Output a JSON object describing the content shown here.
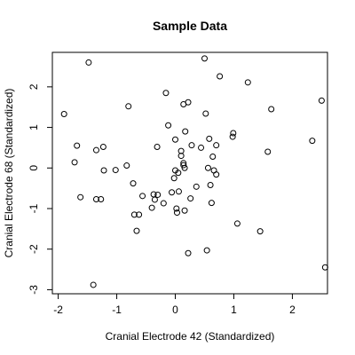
{
  "chart_data": {
    "type": "scatter",
    "title": "Sample Data",
    "xlabel": "Cranial Electrode 42 (Standardized)",
    "ylabel": "Cranial Electrode 68 (Standardized)",
    "xlim": [
      -2.1,
      2.6
    ],
    "ylim": [
      -3.1,
      2.85
    ],
    "xticks": [
      -2,
      -1,
      0,
      1,
      2
    ],
    "yticks": [
      -3,
      -2,
      -1,
      0,
      1,
      2
    ],
    "grid": false,
    "marker": "open-circle",
    "points": [
      {
        "x": -1.9,
        "y": 1.33
      },
      {
        "x": -1.48,
        "y": 2.6
      },
      {
        "x": -1.68,
        "y": 0.55
      },
      {
        "x": -1.72,
        "y": 0.14
      },
      {
        "x": -1.62,
        "y": -0.72
      },
      {
        "x": -1.35,
        "y": 0.44
      },
      {
        "x": -1.23,
        "y": 0.52
      },
      {
        "x": -1.22,
        "y": -0.06
      },
      {
        "x": -1.35,
        "y": -0.77
      },
      {
        "x": -1.27,
        "y": -0.77
      },
      {
        "x": -1.02,
        "y": -0.05
      },
      {
        "x": -0.83,
        "y": 0.06
      },
      {
        "x": -0.8,
        "y": 1.52
      },
      {
        "x": -0.72,
        "y": -0.38
      },
      {
        "x": -0.7,
        "y": -1.15
      },
      {
        "x": -0.62,
        "y": -1.15
      },
      {
        "x": -0.66,
        "y": -1.55
      },
      {
        "x": -0.56,
        "y": -0.69
      },
      {
        "x": -0.4,
        "y": -0.98
      },
      {
        "x": -0.37,
        "y": -0.65
      },
      {
        "x": -0.35,
        "y": -0.78
      },
      {
        "x": -0.3,
        "y": -0.66
      },
      {
        "x": -0.31,
        "y": 0.52
      },
      {
        "x": -0.2,
        "y": -0.87
      },
      {
        "x": -0.16,
        "y": 1.85
      },
      {
        "x": -0.12,
        "y": 1.05
      },
      {
        "x": -0.06,
        "y": -0.6
      },
      {
        "x": -0.02,
        "y": -0.25
      },
      {
        "x": 0.0,
        "y": 0.7
      },
      {
        "x": 0.0,
        "y": -0.06
      },
      {
        "x": 0.02,
        "y": -1.0
      },
      {
        "x": 0.03,
        "y": -1.1
      },
      {
        "x": 0.05,
        "y": -0.12
      },
      {
        "x": 0.1,
        "y": 0.42
      },
      {
        "x": 0.06,
        "y": -0.58
      },
      {
        "x": 0.1,
        "y": 0.3
      },
      {
        "x": 0.14,
        "y": 0.12
      },
      {
        "x": 0.14,
        "y": 0.07
      },
      {
        "x": 0.14,
        "y": 1.57
      },
      {
        "x": 0.16,
        "y": 0.0
      },
      {
        "x": 0.16,
        "y": -1.05
      },
      {
        "x": 0.17,
        "y": 0.9
      },
      {
        "x": 0.22,
        "y": 1.62
      },
      {
        "x": 0.22,
        "y": -2.1
      },
      {
        "x": 0.26,
        "y": -0.75
      },
      {
        "x": 0.28,
        "y": 0.56
      },
      {
        "x": 0.36,
        "y": -0.46
      },
      {
        "x": 0.44,
        "y": 0.5
      },
      {
        "x": 0.5,
        "y": 2.7
      },
      {
        "x": 0.52,
        "y": 1.34
      },
      {
        "x": 0.54,
        "y": -2.03
      },
      {
        "x": 0.56,
        "y": 0.0
      },
      {
        "x": 0.58,
        "y": 0.72
      },
      {
        "x": 0.6,
        "y": -0.42
      },
      {
        "x": 0.62,
        "y": -0.86
      },
      {
        "x": 0.64,
        "y": 0.28
      },
      {
        "x": 0.66,
        "y": -0.06
      },
      {
        "x": 0.7,
        "y": 0.56
      },
      {
        "x": 0.7,
        "y": -0.16
      },
      {
        "x": 0.76,
        "y": 2.26
      },
      {
        "x": 0.98,
        "y": 0.77
      },
      {
        "x": 0.99,
        "y": 0.86
      },
      {
        "x": 1.06,
        "y": -1.37
      },
      {
        "x": 1.24,
        "y": 2.11
      },
      {
        "x": 1.45,
        "y": -1.56
      },
      {
        "x": 1.58,
        "y": 0.4
      },
      {
        "x": 1.64,
        "y": 1.45
      },
      {
        "x": 2.34,
        "y": 0.67
      },
      {
        "x": 2.5,
        "y": 1.66
      },
      {
        "x": 2.56,
        "y": -2.45
      },
      {
        "x": -1.4,
        "y": -2.88
      }
    ]
  }
}
